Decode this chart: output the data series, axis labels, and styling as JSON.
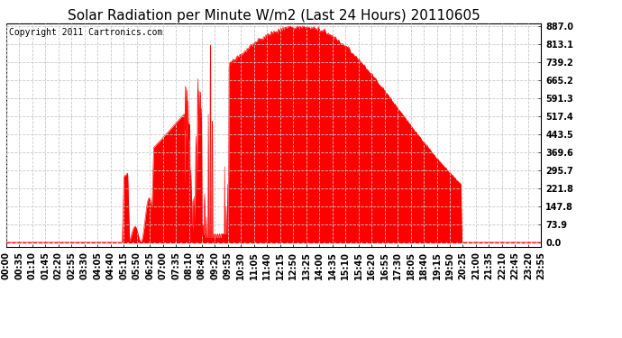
{
  "title": "Solar Radiation per Minute W/m2 (Last 24 Hours) 20110605",
  "copyright": "Copyright 2011 Cartronics.com",
  "y_ticks": [
    0.0,
    73.9,
    147.8,
    221.8,
    295.7,
    369.6,
    443.5,
    517.4,
    591.3,
    665.2,
    739.2,
    813.1,
    887.0
  ],
  "x_tick_labels": [
    "00:00",
    "00:35",
    "01:10",
    "01:45",
    "02:20",
    "02:55",
    "03:30",
    "04:05",
    "04:40",
    "05:15",
    "05:50",
    "06:25",
    "07:00",
    "07:35",
    "08:10",
    "08:45",
    "09:20",
    "09:55",
    "10:30",
    "11:05",
    "11:40",
    "12:15",
    "12:50",
    "13:25",
    "14:00",
    "14:35",
    "15:10",
    "15:45",
    "16:20",
    "16:55",
    "17:30",
    "18:05",
    "18:40",
    "19:15",
    "19:50",
    "20:25",
    "21:00",
    "21:35",
    "22:10",
    "22:45",
    "23:20",
    "23:55"
  ],
  "fill_color": "#FF0000",
  "line_color": "#FF0000",
  "background_color": "#FFFFFF",
  "grid_color": "#C8C8C8",
  "dashed_line_color": "#FF0000",
  "title_fontsize": 11,
  "copyright_fontsize": 7,
  "tick_fontsize": 7,
  "y_max": 887.0,
  "y_min": 0.0
}
